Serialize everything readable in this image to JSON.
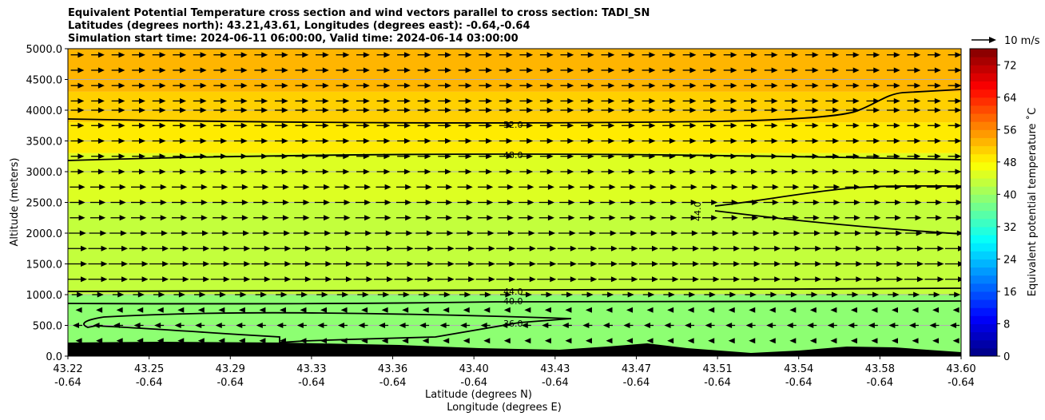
{
  "chart_data": {
    "type": "heatmap",
    "title_lines": [
      "Equivalent Potential Temperature cross section and wind vectors parallel to cross section: TADI_SN",
      "Latitudes (degrees north): 43.21,43.61, Longitudes (degrees east): -0.64,-0.64",
      "Simulation start time: 2024-06-11 06:00:00, Valid time: 2024-06-14 03:00:00"
    ],
    "xlabel_line1": "Latitude (degrees N)",
    "xlabel_line2": "Longitude (degrees E)",
    "ylabel": "Altitude (meters)",
    "x_ticks": [
      {
        "lat": "43.22",
        "lon": "-0.64"
      },
      {
        "lat": "43.25",
        "lon": "-0.64"
      },
      {
        "lat": "43.29",
        "lon": "-0.64"
      },
      {
        "lat": "43.33",
        "lon": "-0.64"
      },
      {
        "lat": "43.36",
        "lon": "-0.64"
      },
      {
        "lat": "43.40",
        "lon": "-0.64"
      },
      {
        "lat": "43.43",
        "lon": "-0.64"
      },
      {
        "lat": "43.47",
        "lon": "-0.64"
      },
      {
        "lat": "43.51",
        "lon": "-0.64"
      },
      {
        "lat": "43.54",
        "lon": "-0.64"
      },
      {
        "lat": "43.58",
        "lon": "-0.64"
      },
      {
        "lat": "43.60",
        "lon": "-0.64"
      }
    ],
    "y_ticks": [
      "0.0",
      "500.0",
      "1000.0",
      "1500.0",
      "2000.0",
      "2500.0",
      "3000.0",
      "3500.0",
      "4000.0",
      "4500.0",
      "5000.0"
    ],
    "ylim": [
      0,
      5000
    ],
    "grid": "horizontal",
    "colorbar": {
      "label": "Equivalent potential temperature ˚C",
      "ticks": [
        "0",
        "8",
        "16",
        "24",
        "32",
        "40",
        "48",
        "56",
        "64",
        "72"
      ],
      "range": [
        0,
        76
      ],
      "colormap": "jet"
    },
    "quiver_key": {
      "label": "10 m/s"
    },
    "contour_labels": [
      {
        "text": "52.0",
        "altitude": 3760
      },
      {
        "text": "48.0",
        "altitude": 3270
      },
      {
        "text": "44.0",
        "altitude": 2350
      },
      {
        "text": "44.0",
        "altitude": 1040
      },
      {
        "text": "40.0",
        "altitude": 880
      },
      {
        "text": "36.0",
        "altitude": 520
      }
    ],
    "theta_e_bands": [
      {
        "altitude_range": [
          4300,
          5000
        ],
        "value": 53
      },
      {
        "altitude_range": [
          3800,
          4300
        ],
        "value": 51
      },
      {
        "altitude_range": [
          3300,
          3800
        ],
        "value": 48
      },
      {
        "altitude_range": [
          2500,
          3300
        ],
        "value": 45
      },
      {
        "altitude_range": [
          1000,
          2500
        ],
        "value": 43
      },
      {
        "altitude_range": [
          0,
          1000
        ],
        "value": 38
      }
    ],
    "wind_rows": [
      {
        "altitude": 4900,
        "direction": "east",
        "speed": 7
      },
      {
        "altitude": 4650,
        "direction": "east",
        "speed": 7
      },
      {
        "altitude": 4400,
        "direction": "east",
        "speed": 7
      },
      {
        "altitude": 4150,
        "direction": "east",
        "speed": 7
      },
      {
        "altitude": 4000,
        "direction": "east",
        "speed": 7
      },
      {
        "altitude": 3750,
        "direction": "east",
        "speed": 7
      },
      {
        "altitude": 3500,
        "direction": "east",
        "speed": 7
      },
      {
        "altitude": 3250,
        "direction": "east",
        "speed": 7
      },
      {
        "altitude": 3000,
        "direction": "east",
        "speed": 7
      },
      {
        "altitude": 2750,
        "direction": "east",
        "speed": 8
      },
      {
        "altitude": 2500,
        "direction": "east",
        "speed": 8
      },
      {
        "altitude": 2250,
        "direction": "east",
        "speed": 8
      },
      {
        "altitude": 2000,
        "direction": "east",
        "speed": 9
      },
      {
        "altitude": 1750,
        "direction": "east",
        "speed": 10
      },
      {
        "altitude": 1500,
        "direction": "east",
        "speed": 10
      },
      {
        "altitude": 1250,
        "direction": "east",
        "speed": 10
      },
      {
        "altitude": 1000,
        "direction": "east",
        "speed": 6
      },
      {
        "altitude": 750,
        "direction": "west",
        "speed": 2
      },
      {
        "altitude": 500,
        "direction": "west",
        "speed": 5
      },
      {
        "altitude": 250,
        "direction": "west",
        "speed": 2
      }
    ]
  }
}
